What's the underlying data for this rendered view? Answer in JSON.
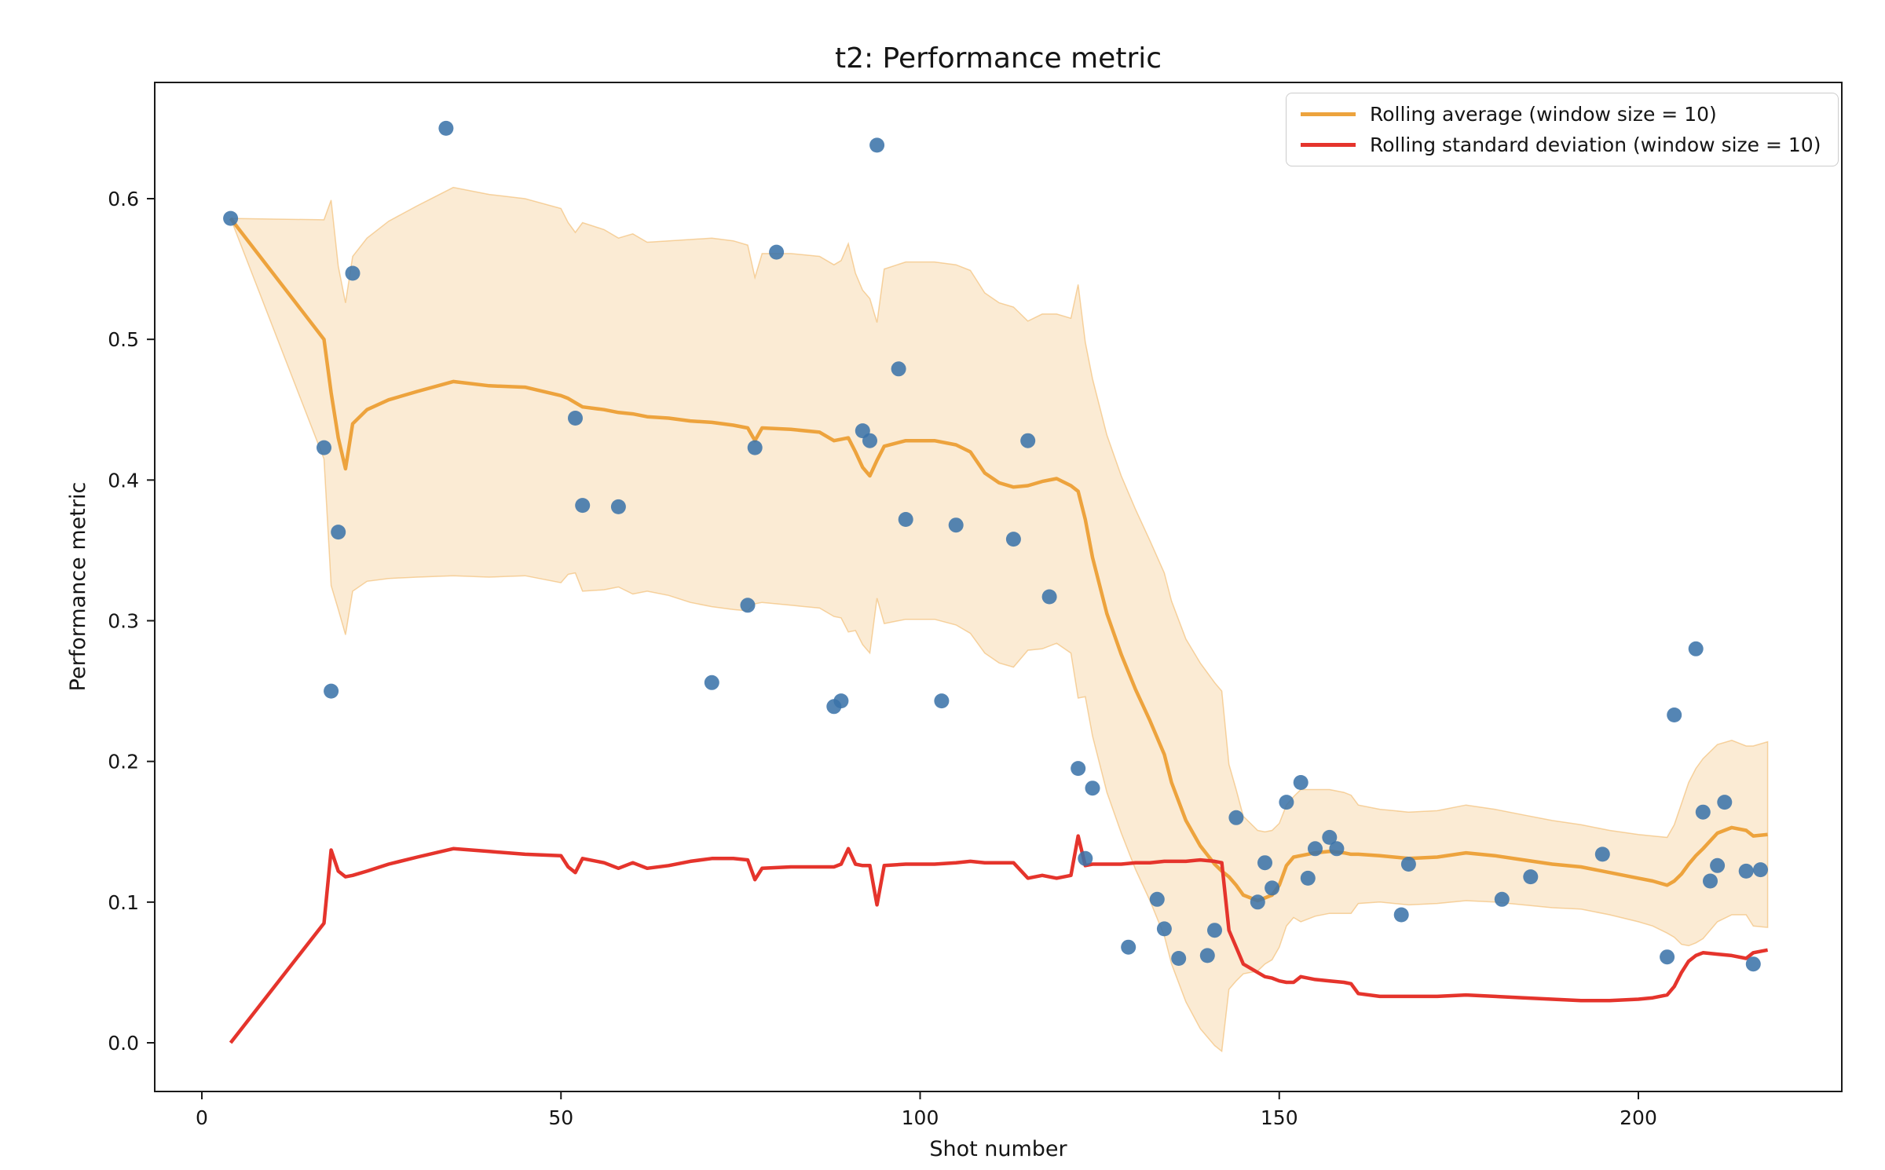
{
  "chart_data": {
    "type": "scatter",
    "title": "t2: Performance metric",
    "xlabel": "Shot number",
    "ylabel": "Performance metric",
    "xlim": [
      -6.56,
      228.32
    ],
    "ylim": [
      -0.0346,
      0.6826
    ],
    "xticks": [
      0,
      50,
      100,
      150,
      200
    ],
    "yticks": [
      0.0,
      0.1,
      0.2,
      0.3,
      0.4,
      0.5,
      0.6
    ],
    "grid": false,
    "legend_position": "upper right",
    "legend": [
      {
        "label": "Rolling average (window size = 10)",
        "color": "#eda33d"
      },
      {
        "label": "Rolling standard deviation (window size = 10)",
        "color": "#e5342c"
      }
    ],
    "colors": {
      "scatter": "#3b73a9",
      "rolling_average": "#eda33d",
      "rolling_std": "#e5342c",
      "band_fill": "rgba(237,163,61,0.22)",
      "band_edge": "rgba(237,163,61,0.45)",
      "spine": "#1a1a1a",
      "text": "#151515"
    },
    "scatter_points": [
      [
        4,
        0.586
      ],
      [
        17,
        0.423
      ],
      [
        18,
        0.25
      ],
      [
        19,
        0.363
      ],
      [
        21,
        0.547
      ],
      [
        34,
        0.65
      ],
      [
        52,
        0.444
      ],
      [
        53,
        0.382
      ],
      [
        58,
        0.381
      ],
      [
        71,
        0.256
      ],
      [
        76,
        0.311
      ],
      [
        77,
        0.423
      ],
      [
        80,
        0.562
      ],
      [
        88,
        0.239
      ],
      [
        89,
        0.243
      ],
      [
        92,
        0.435
      ],
      [
        93,
        0.428
      ],
      [
        94,
        0.638
      ],
      [
        97,
        0.479
      ],
      [
        98,
        0.372
      ],
      [
        103,
        0.243
      ],
      [
        105,
        0.368
      ],
      [
        113,
        0.358
      ],
      [
        115,
        0.428
      ],
      [
        118,
        0.317
      ],
      [
        122,
        0.195
      ],
      [
        123,
        0.131
      ],
      [
        124,
        0.181
      ],
      [
        129,
        0.068
      ],
      [
        133,
        0.102
      ],
      [
        134,
        0.081
      ],
      [
        136,
        0.06
      ],
      [
        140,
        0.062
      ],
      [
        141,
        0.08
      ],
      [
        144,
        0.16
      ],
      [
        147,
        0.1
      ],
      [
        148,
        0.128
      ],
      [
        149,
        0.11
      ],
      [
        151,
        0.171
      ],
      [
        153,
        0.185
      ],
      [
        154,
        0.117
      ],
      [
        155,
        0.138
      ],
      [
        157,
        0.146
      ],
      [
        158,
        0.138
      ],
      [
        167,
        0.091
      ],
      [
        168,
        0.127
      ],
      [
        181,
        0.102
      ],
      [
        185,
        0.118
      ],
      [
        195,
        0.134
      ],
      [
        204,
        0.061
      ],
      [
        205,
        0.233
      ],
      [
        208,
        0.28
      ],
      [
        209,
        0.164
      ],
      [
        210,
        0.115
      ],
      [
        211,
        0.126
      ],
      [
        212,
        0.171
      ],
      [
        215,
        0.122
      ],
      [
        216,
        0.056
      ],
      [
        217,
        0.123
      ]
    ],
    "rolling_series_note": "triples of [shot, rolling_mean, rolling_std]; shaded band = mean +/- std",
    "rolling": [
      [
        4,
        0.586,
        0.0
      ],
      [
        17,
        0.5,
        0.085
      ],
      [
        18,
        0.462,
        0.137
      ],
      [
        19,
        0.43,
        0.122
      ],
      [
        20,
        0.408,
        0.118
      ],
      [
        21,
        0.44,
        0.119
      ],
      [
        23,
        0.45,
        0.122
      ],
      [
        26,
        0.457,
        0.127
      ],
      [
        30,
        0.463,
        0.132
      ],
      [
        35,
        0.47,
        0.138
      ],
      [
        40,
        0.467,
        0.136
      ],
      [
        45,
        0.466,
        0.134
      ],
      [
        50,
        0.46,
        0.133
      ],
      [
        51,
        0.458,
        0.125
      ],
      [
        52,
        0.455,
        0.121
      ],
      [
        53,
        0.452,
        0.131
      ],
      [
        56,
        0.45,
        0.128
      ],
      [
        58,
        0.448,
        0.124
      ],
      [
        60,
        0.447,
        0.128
      ],
      [
        62,
        0.445,
        0.124
      ],
      [
        65,
        0.444,
        0.126
      ],
      [
        68,
        0.442,
        0.129
      ],
      [
        71,
        0.441,
        0.131
      ],
      [
        74,
        0.439,
        0.131
      ],
      [
        76,
        0.437,
        0.13
      ],
      [
        77,
        0.428,
        0.116
      ],
      [
        78,
        0.437,
        0.124
      ],
      [
        82,
        0.436,
        0.125
      ],
      [
        86,
        0.434,
        0.125
      ],
      [
        88,
        0.428,
        0.125
      ],
      [
        89,
        0.429,
        0.127
      ],
      [
        90,
        0.43,
        0.138
      ],
      [
        91,
        0.42,
        0.127
      ],
      [
        92,
        0.409,
        0.126
      ],
      [
        93,
        0.403,
        0.126
      ],
      [
        94,
        0.414,
        0.098
      ],
      [
        95,
        0.424,
        0.126
      ],
      [
        98,
        0.428,
        0.127
      ],
      [
        102,
        0.428,
        0.127
      ],
      [
        105,
        0.425,
        0.128
      ],
      [
        107,
        0.42,
        0.129
      ],
      [
        109,
        0.405,
        0.128
      ],
      [
        111,
        0.398,
        0.128
      ],
      [
        113,
        0.395,
        0.128
      ],
      [
        115,
        0.396,
        0.117
      ],
      [
        117,
        0.399,
        0.119
      ],
      [
        119,
        0.401,
        0.117
      ],
      [
        121,
        0.396,
        0.119
      ],
      [
        122,
        0.392,
        0.147
      ],
      [
        123,
        0.372,
        0.126
      ],
      [
        124,
        0.345,
        0.127
      ],
      [
        126,
        0.305,
        0.127
      ],
      [
        128,
        0.276,
        0.127
      ],
      [
        130,
        0.251,
        0.128
      ],
      [
        132,
        0.229,
        0.128
      ],
      [
        134,
        0.205,
        0.129
      ],
      [
        135,
        0.185,
        0.129
      ],
      [
        137,
        0.158,
        0.129
      ],
      [
        139,
        0.14,
        0.13
      ],
      [
        141,
        0.127,
        0.129
      ],
      [
        142,
        0.122,
        0.128
      ],
      [
        143,
        0.118,
        0.08
      ],
      [
        144,
        0.112,
        0.068
      ],
      [
        145,
        0.105,
        0.056
      ],
      [
        147,
        0.101,
        0.05
      ],
      [
        148,
        0.103,
        0.047
      ],
      [
        149,
        0.105,
        0.046
      ],
      [
        150,
        0.112,
        0.044
      ],
      [
        151,
        0.126,
        0.043
      ],
      [
        152,
        0.132,
        0.043
      ],
      [
        153,
        0.133,
        0.047
      ],
      [
        155,
        0.135,
        0.045
      ],
      [
        157,
        0.136,
        0.044
      ],
      [
        159,
        0.135,
        0.043
      ],
      [
        160,
        0.134,
        0.042
      ],
      [
        161,
        0.134,
        0.035
      ],
      [
        164,
        0.133,
        0.033
      ],
      [
        168,
        0.131,
        0.033
      ],
      [
        172,
        0.132,
        0.033
      ],
      [
        176,
        0.135,
        0.034
      ],
      [
        180,
        0.133,
        0.033
      ],
      [
        184,
        0.13,
        0.032
      ],
      [
        188,
        0.127,
        0.031
      ],
      [
        192,
        0.125,
        0.03
      ],
      [
        196,
        0.121,
        0.03
      ],
      [
        200,
        0.117,
        0.031
      ],
      [
        202,
        0.115,
        0.032
      ],
      [
        204,
        0.112,
        0.034
      ],
      [
        205,
        0.115,
        0.04
      ],
      [
        206,
        0.12,
        0.05
      ],
      [
        207,
        0.127,
        0.058
      ],
      [
        208,
        0.133,
        0.062
      ],
      [
        209,
        0.138,
        0.064
      ],
      [
        211,
        0.149,
        0.063
      ],
      [
        213,
        0.153,
        0.062
      ],
      [
        215,
        0.151,
        0.06
      ],
      [
        216,
        0.147,
        0.064
      ],
      [
        218,
        0.148,
        0.066
      ]
    ]
  }
}
